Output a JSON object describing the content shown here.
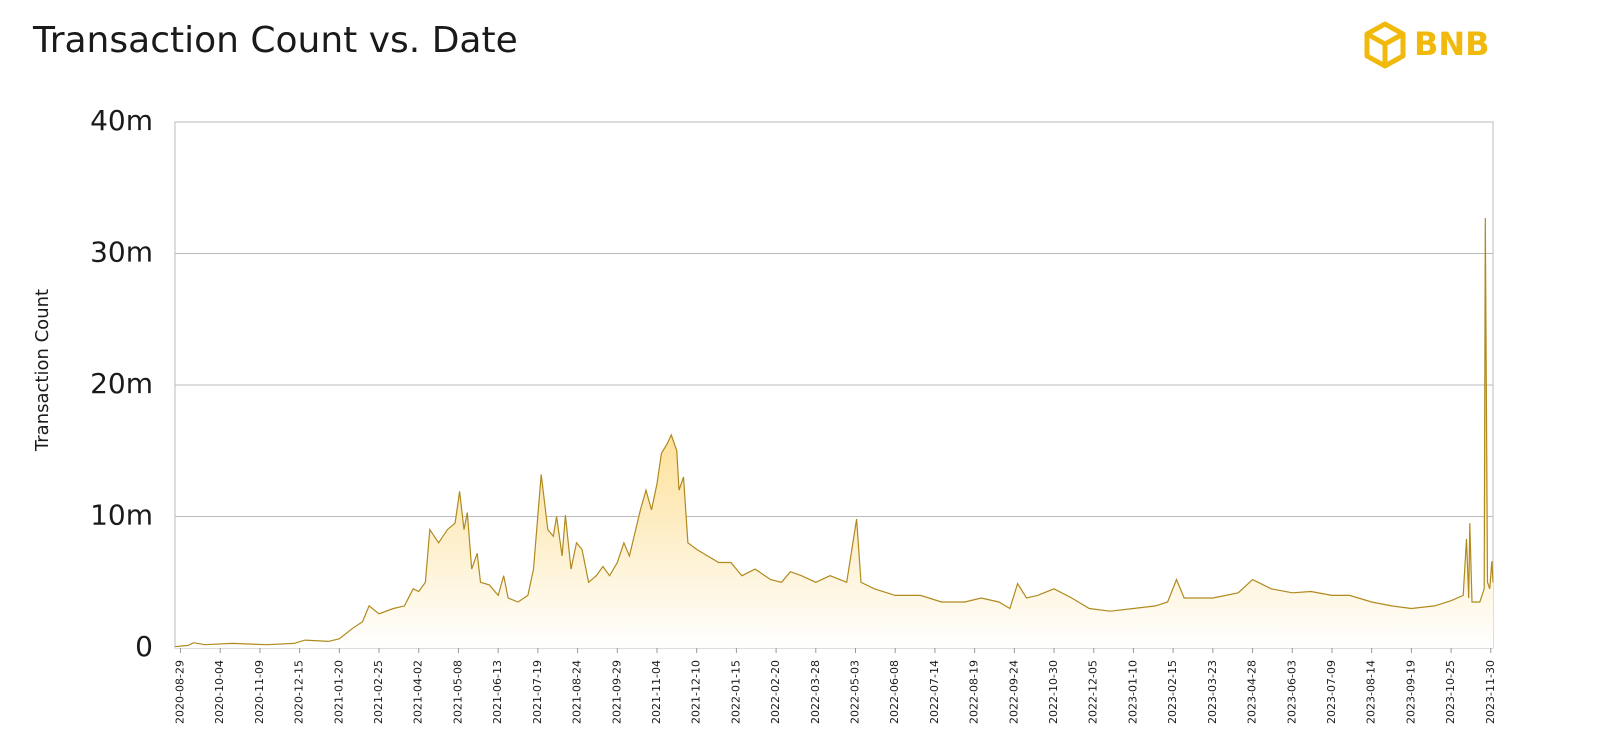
{
  "chart_data": {
    "type": "area",
    "title": "Transaction Count vs. Date",
    "logo": "BNB",
    "y_label": "Transaction Count",
    "xlim": [
      "2020-08-24",
      "2023-12-02"
    ],
    "xticks": [
      "2020-08-29",
      "2020-10-04",
      "2020-11-09",
      "2020-12-15",
      "2021-01-20",
      "2021-02-25",
      "2021-04-02",
      "2021-05-08",
      "2021-06-13",
      "2021-07-19",
      "2021-08-24",
      "2021-09-29",
      "2021-11-04",
      "2021-12-10",
      "2022-01-15",
      "2022-02-20",
      "2022-03-28",
      "2022-05-03",
      "2022-06-08",
      "2022-07-14",
      "2022-08-19",
      "2022-09-24",
      "2022-10-30",
      "2022-12-05",
      "2023-01-10",
      "2023-02-15",
      "2023-03-23",
      "2023-04-28",
      "2023-06-03",
      "2023-07-09",
      "2023-08-14",
      "2023-09-19",
      "2023-10-25",
      "2023-11-30"
    ],
    "ylim": [
      0,
      40000000
    ],
    "yticks": [
      0,
      {
        "value": 10000000,
        "label": "10m"
      },
      {
        "value": 20000000,
        "label": "20m"
      },
      {
        "value": 30000000,
        "label": "30m"
      },
      {
        "value": 40000000,
        "label": "40m"
      }
    ],
    "grid": true,
    "x": [
      "2020-08-24",
      "2020-09-05",
      "2020-09-10",
      "2020-09-20",
      "2020-10-15",
      "2020-11-15",
      "2020-12-10",
      "2020-12-20",
      "2021-01-10",
      "2021-01-20",
      "2021-02-01",
      "2021-02-10",
      "2021-02-16",
      "2021-02-25",
      "2021-03-10",
      "2021-03-20",
      "2021-03-28",
      "2021-04-02",
      "2021-04-08",
      "2021-04-12",
      "2021-04-20",
      "2021-04-28",
      "2021-05-05",
      "2021-05-09",
      "2021-05-13",
      "2021-05-16",
      "2021-05-20",
      "2021-05-25",
      "2021-05-28",
      "2021-06-05",
      "2021-06-13",
      "2021-06-18",
      "2021-06-22",
      "2021-07-01",
      "2021-07-10",
      "2021-07-15",
      "2021-07-22",
      "2021-07-28",
      "2021-08-02",
      "2021-08-05",
      "2021-08-10",
      "2021-08-13",
      "2021-08-18",
      "2021-08-23",
      "2021-08-28",
      "2021-09-03",
      "2021-09-10",
      "2021-09-16",
      "2021-09-22",
      "2021-09-29",
      "2021-10-05",
      "2021-10-10",
      "2021-10-20",
      "2021-10-25",
      "2021-10-30",
      "2021-11-04",
      "2021-11-08",
      "2021-11-13",
      "2021-11-17",
      "2021-11-22",
      "2021-11-24",
      "2021-11-28",
      "2021-12-02",
      "2021-12-10",
      "2021-12-20",
      "2021-12-30",
      "2022-01-10",
      "2022-01-20",
      "2022-02-01",
      "2022-02-15",
      "2022-02-25",
      "2022-03-05",
      "2022-03-15",
      "2022-03-28",
      "2022-04-10",
      "2022-04-25",
      "2022-05-04",
      "2022-05-08",
      "2022-05-20",
      "2022-06-08",
      "2022-07-01",
      "2022-07-20",
      "2022-08-10",
      "2022-08-25",
      "2022-09-10",
      "2022-09-20",
      "2022-09-27",
      "2022-10-05",
      "2022-10-15",
      "2022-10-30",
      "2022-11-15",
      "2022-12-01",
      "2022-12-20",
      "2023-01-10",
      "2023-01-30",
      "2023-02-10",
      "2023-02-18",
      "2023-02-25",
      "2023-03-23",
      "2023-04-15",
      "2023-04-28",
      "2023-05-15",
      "2023-06-03",
      "2023-06-20",
      "2023-07-09",
      "2023-07-25",
      "2023-08-14",
      "2023-09-01",
      "2023-09-19",
      "2023-10-10",
      "2023-10-25",
      "2023-11-05",
      "2023-11-08",
      "2023-11-10",
      "2023-11-11",
      "2023-11-13",
      "2023-11-20",
      "2023-11-24",
      "2023-11-25",
      "2023-11-27",
      "2023-11-29",
      "2023-12-01",
      "2023-12-02"
    ],
    "series": [
      {
        "color": "#b08a1e",
        "fill_color": "#fcc233",
        "values": [
          100000,
          200000,
          400000,
          250000,
          350000,
          250000,
          350000,
          600000,
          500000,
          700000,
          1500000,
          2000000,
          3200000,
          2600000,
          3000000,
          3200000,
          4500000,
          4300000,
          5000000,
          9000000,
          8000000,
          9000000,
          9500000,
          11900000,
          9000000,
          10300000,
          6000000,
          7200000,
          5000000,
          4800000,
          4000000,
          5500000,
          3800000,
          3500000,
          4000000,
          6000000,
          13200000,
          9000000,
          8500000,
          10000000,
          7000000,
          10100000,
          6000000,
          8000000,
          7500000,
          5000000,
          5500000,
          6200000,
          5500000,
          6500000,
          8000000,
          7000000,
          10500000,
          12000000,
          10500000,
          12500000,
          14800000,
          15500000,
          16200000,
          15000000,
          12000000,
          13000000,
          8000000,
          7500000,
          7000000,
          6500000,
          6500000,
          5500000,
          6000000,
          5200000,
          5000000,
          5800000,
          5500000,
          5000000,
          5500000,
          5000000,
          9800000,
          5000000,
          4500000,
          4000000,
          4000000,
          3500000,
          3500000,
          3800000,
          3500000,
          3000000,
          4900000,
          3800000,
          4000000,
          4500000,
          3800000,
          3000000,
          2800000,
          3000000,
          3200000,
          3500000,
          5200000,
          3800000,
          3800000,
          4200000,
          5200000,
          4500000,
          4200000,
          4300000,
          4000000,
          4000000,
          3500000,
          3200000,
          3000000,
          3200000,
          3600000,
          4000000,
          8300000,
          3800000,
          9500000,
          3500000,
          3500000,
          4500000,
          32700000,
          5000000,
          4500000,
          6600000,
          5000000
        ]
      }
    ]
  }
}
